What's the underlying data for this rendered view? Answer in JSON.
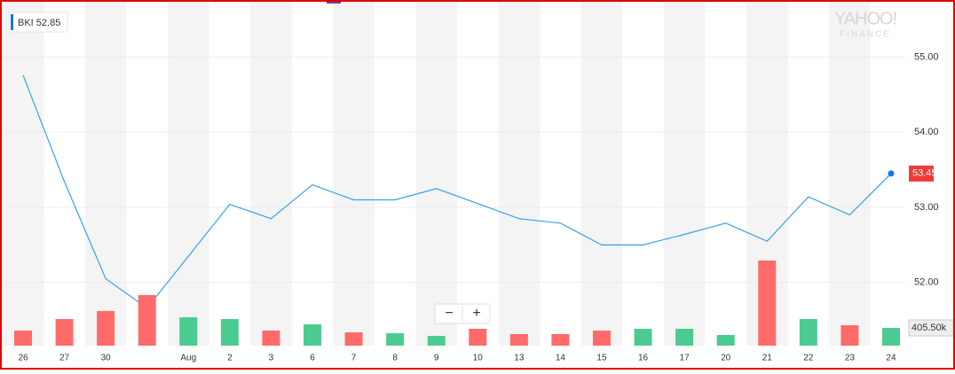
{
  "chart_data": {
    "type": "line",
    "legend_value": 52.85,
    "watermark": [
      "YAHOO!",
      "FINANCE"
    ],
    "zoom_controls": [
      "−",
      "+"
    ],
    "categories": [
      "26",
      "27",
      "30",
      null,
      "Aug",
      "2",
      "3",
      "6",
      "7",
      "8",
      "9",
      "10",
      "13",
      "14",
      "15",
      "16",
      "17",
      "20",
      "21",
      "22",
      "23",
      "24"
    ],
    "series": [
      {
        "name": "BKI",
        "color": "#3aa0e8",
        "values": [
          54.76,
          53.34,
          52.05,
          51.66,
          52.35,
          53.04,
          52.85,
          53.3,
          53.1,
          53.1,
          53.25,
          53.05,
          52.85,
          52.79,
          52.5,
          52.5,
          52.64,
          52.79,
          52.55,
          53.14,
          52.9,
          53.45
        ]
      },
      {
        "name": "Volume",
        "axis": "y2",
        "type": "bar",
        "values": [
          345,
          608,
          791,
          1156,
          649,
          608,
          345,
          487,
          304,
          284,
          223,
          385,
          264,
          264,
          345,
          385,
          385,
          243,
          1946,
          608,
          466,
          405.5
        ],
        "colors": [
          "#ff6b6b",
          "#ff6b6b",
          "#ff6b6b",
          "#ff6b6b",
          "#4ccb91",
          "#4ccb91",
          "#ff6b6b",
          "#4ccb91",
          "#ff6b6b",
          "#4ccb91",
          "#4ccb91",
          "#ff6b6b",
          "#ff6b6b",
          "#ff6b6b",
          "#ff6b6b",
          "#4ccb91",
          "#4ccb91",
          "#4ccb91",
          "#ff6b6b",
          "#4ccb91",
          "#ff6b6b",
          "#4ccb91"
        ]
      }
    ],
    "ylim": [
      51.16,
      55.7
    ],
    "yticks": [
      {
        "value": 52,
        "label": "52.00"
      },
      {
        "value": 53,
        "label": "53.00"
      },
      {
        "value": 54,
        "label": "54.00"
      },
      {
        "value": 55,
        "label": "55.00"
      }
    ],
    "y2lim": [
      0,
      7800
    ],
    "y2ticks": [
      {
        "value": 405.5,
        "label": "405.50k"
      }
    ],
    "last_price_color": "#f0393a",
    "grid": true
  }
}
